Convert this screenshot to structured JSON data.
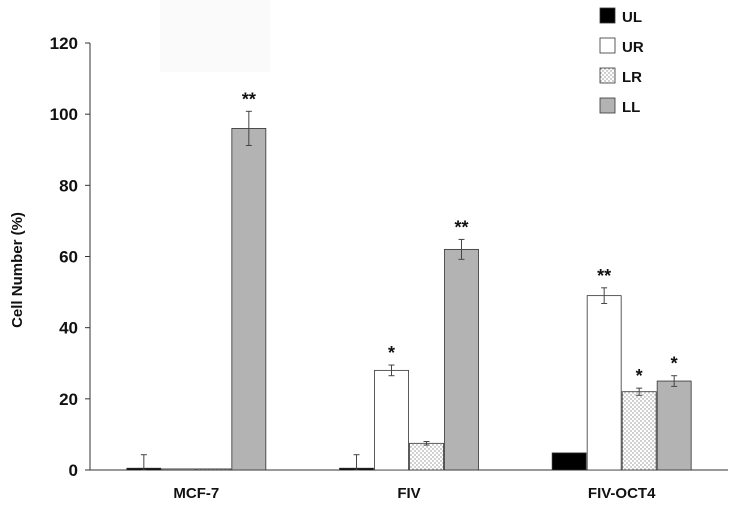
{
  "chart_data": {
    "type": "bar",
    "title": "",
    "xlabel": "",
    "ylabel": "Cell Number (%)",
    "ylim": [
      0,
      120
    ],
    "yticks": [
      0,
      20,
      40,
      60,
      80,
      100,
      120
    ],
    "grid": false,
    "legend_position": "top-right",
    "categories": [
      "MCF-7",
      "FIV",
      "FIV-OCT4"
    ],
    "series": [
      {
        "name": "UL",
        "fill": "#000000",
        "pattern": "solid",
        "values": [
          0.5,
          0.5,
          4.8
        ],
        "errors": [
          3.8,
          3.8,
          0
        ],
        "significance": [
          "",
          "",
          ""
        ]
      },
      {
        "name": "UR",
        "fill": "#ffffff",
        "pattern": "solid",
        "values": [
          0.3,
          28,
          49
        ],
        "errors": [
          0,
          1.5,
          2.2
        ],
        "significance": [
          "",
          "*",
          "**"
        ]
      },
      {
        "name": "LR",
        "fill": "#ffffff",
        "pattern": "dotted",
        "values": [
          0.3,
          7.5,
          22
        ],
        "errors": [
          0,
          0.5,
          1.0
        ],
        "significance": [
          "",
          "",
          "*"
        ]
      },
      {
        "name": "LL",
        "fill": "#b3b3b3",
        "pattern": "solid",
        "values": [
          96,
          62,
          25
        ],
        "errors": [
          4.8,
          2.8,
          1.5
        ],
        "significance": [
          "**",
          "**",
          "*"
        ]
      }
    ]
  }
}
